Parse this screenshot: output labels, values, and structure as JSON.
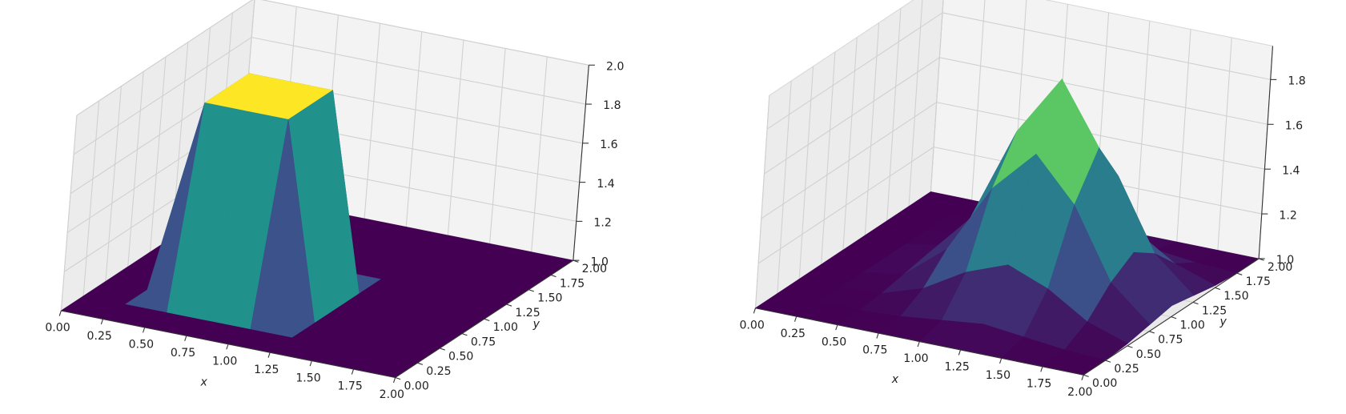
{
  "chart_data": [
    {
      "type": "surface3d",
      "xlabel": "x",
      "ylabel": "y",
      "x": [
        0,
        0.25,
        0.5,
        0.75,
        1,
        1.25,
        1.5,
        1.75,
        2
      ],
      "y": [
        0,
        0.25,
        0.5,
        0.75,
        1,
        1.25,
        1.5,
        1.75,
        2
      ],
      "z": [
        [
          1,
          1,
          1,
          1,
          1,
          1,
          1,
          1,
          1
        ],
        [
          1,
          1,
          1,
          1,
          1,
          1,
          1,
          1,
          1
        ],
        [
          1,
          1,
          2,
          2,
          2,
          1,
          1,
          1,
          1
        ],
        [
          1,
          1,
          2,
          2,
          2,
          1,
          1,
          1,
          1
        ],
        [
          1,
          1,
          2,
          2,
          2,
          1,
          1,
          1,
          1
        ],
        [
          1,
          1,
          1,
          1,
          1,
          1,
          1,
          1,
          1
        ],
        [
          1,
          1,
          1,
          1,
          1,
          1,
          1,
          1,
          1
        ],
        [
          1,
          1,
          1,
          1,
          1,
          1,
          1,
          1,
          1
        ],
        [
          1,
          1,
          1,
          1,
          1,
          1,
          1,
          1,
          1
        ]
      ],
      "xlim": [
        0,
        2
      ],
      "ylim": [
        0,
        2
      ],
      "zlim": [
        1,
        2
      ],
      "xticks": [
        {
          "value": 0,
          "label": "0.00"
        },
        0.25,
        {
          "value": 0.5,
          "label": "0.50"
        },
        0.75,
        {
          "value": 1,
          "label": "1.00"
        },
        1.25,
        {
          "value": 1.5,
          "label": "1.50"
        },
        1.75,
        {
          "value": 2,
          "label": "2.00"
        }
      ],
      "yticks": [
        {
          "value": 0,
          "label": "0.00"
        },
        0.25,
        {
          "value": 0.5,
          "label": "0.50"
        },
        0.75,
        {
          "value": 1,
          "label": "1.00"
        },
        1.25,
        {
          "value": 1.5,
          "label": "1.50"
        },
        1.75,
        {
          "value": 2,
          "label": "2.00"
        }
      ],
      "zticks": [
        {
          "value": 1,
          "label": "1.0"
        },
        1.2,
        1.4,
        1.6,
        1.8,
        {
          "value": 2,
          "label": "2.0"
        }
      ],
      "colormap": "viridis",
      "grid": true
    },
    {
      "type": "surface3d",
      "xlabel": "x",
      "ylabel": "y",
      "x": [
        0,
        0.25,
        0.5,
        0.75,
        1,
        1.25,
        1.5,
        1.75,
        2
      ],
      "y": [
        0,
        0.25,
        0.5,
        0.75,
        1,
        1.25,
        1.5,
        1.75,
        2
      ],
      "z": [
        [
          1,
          1,
          1,
          1,
          1,
          1,
          1,
          1,
          1
        ],
        [
          1,
          1,
          1,
          1.01,
          1.03,
          1.05,
          1.03,
          1.01,
          1
        ],
        [
          1,
          1,
          1.01,
          1.07,
          1.18,
          1.25,
          1.18,
          1.07,
          1.01
        ],
        [
          1,
          1,
          1.03,
          1.18,
          1.49,
          1.68,
          1.49,
          1.18,
          1.03
        ],
        [
          1,
          1,
          1.05,
          1.25,
          1.68,
          1.95,
          1.68,
          1.25,
          1.05
        ],
        [
          1,
          1,
          1.03,
          1.18,
          1.49,
          1.68,
          1.49,
          1.18,
          1.03
        ],
        [
          1,
          1,
          1.01,
          1.07,
          1.18,
          1.25,
          1.18,
          1.07,
          1.01
        ],
        [
          1,
          1,
          1,
          1.01,
          1.03,
          1.05,
          1.03,
          1.01,
          1
        ],
        [
          1,
          1,
          1,
          1,
          1,
          1,
          1,
          1,
          1
        ]
      ],
      "xlim": [
        0,
        2
      ],
      "ylim": [
        0,
        2
      ],
      "zlim": [
        1,
        1.95
      ],
      "xticks": [
        {
          "value": 0,
          "label": "0.00"
        },
        0.25,
        {
          "value": 0.5,
          "label": "0.50"
        },
        0.75,
        {
          "value": 1,
          "label": "1.00"
        },
        1.25,
        {
          "value": 1.5,
          "label": "1.50"
        },
        1.75,
        {
          "value": 2,
          "label": "2.00"
        }
      ],
      "yticks": [
        {
          "value": 0,
          "label": "0.00"
        },
        0.25,
        {
          "value": 0.5,
          "label": "0.50"
        },
        0.75,
        {
          "value": 1,
          "label": "1.00"
        },
        1.25,
        {
          "value": 1.5,
          "label": "1.50"
        },
        1.75,
        {
          "value": 2,
          "label": "2.00"
        }
      ],
      "zticks": [
        {
          "value": 1,
          "label": "1.0"
        },
        1.2,
        1.4,
        1.6,
        1.8
      ],
      "colormap": "viridis",
      "grid": true
    }
  ]
}
